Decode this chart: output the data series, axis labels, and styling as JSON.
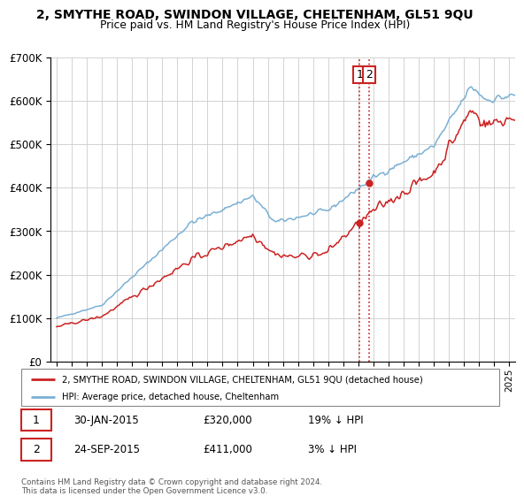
{
  "title": "2, SMYTHE ROAD, SWINDON VILLAGE, CHELTENHAM, GL51 9QU",
  "subtitle": "Price paid vs. HM Land Registry's House Price Index (HPI)",
  "legend_label_red": "2, SMYTHE ROAD, SWINDON VILLAGE, CHELTENHAM, GL51 9QU (detached house)",
  "legend_label_blue": "HPI: Average price, detached house, Cheltenham",
  "t1_date": "30-JAN-2015",
  "t1_price": "£320,000",
  "t1_pct": "19% ↓ HPI",
  "t1_x": 2015.08,
  "t1_y": 320000,
  "t2_date": "24-SEP-2015",
  "t2_price": "£411,000",
  "t2_pct": "3% ↓ HPI",
  "t2_x": 2015.73,
  "t2_y": 411000,
  "footnote": "Contains HM Land Registry data © Crown copyright and database right 2024.\nThis data is licensed under the Open Government Licence v3.0.",
  "ylim": [
    0,
    700000
  ],
  "yticks": [
    0,
    100000,
    200000,
    300000,
    400000,
    500000,
    600000,
    700000
  ],
  "ytick_labels": [
    "£0",
    "£100K",
    "£200K",
    "£300K",
    "£400K",
    "£500K",
    "£600K",
    "£700K"
  ],
  "xlim_start": 1994.6,
  "xlim_end": 2025.4,
  "red_color": "#cc2222",
  "blue_color": "#7ab0d4",
  "background_color": "#ffffff",
  "grid_color": "#cccccc"
}
